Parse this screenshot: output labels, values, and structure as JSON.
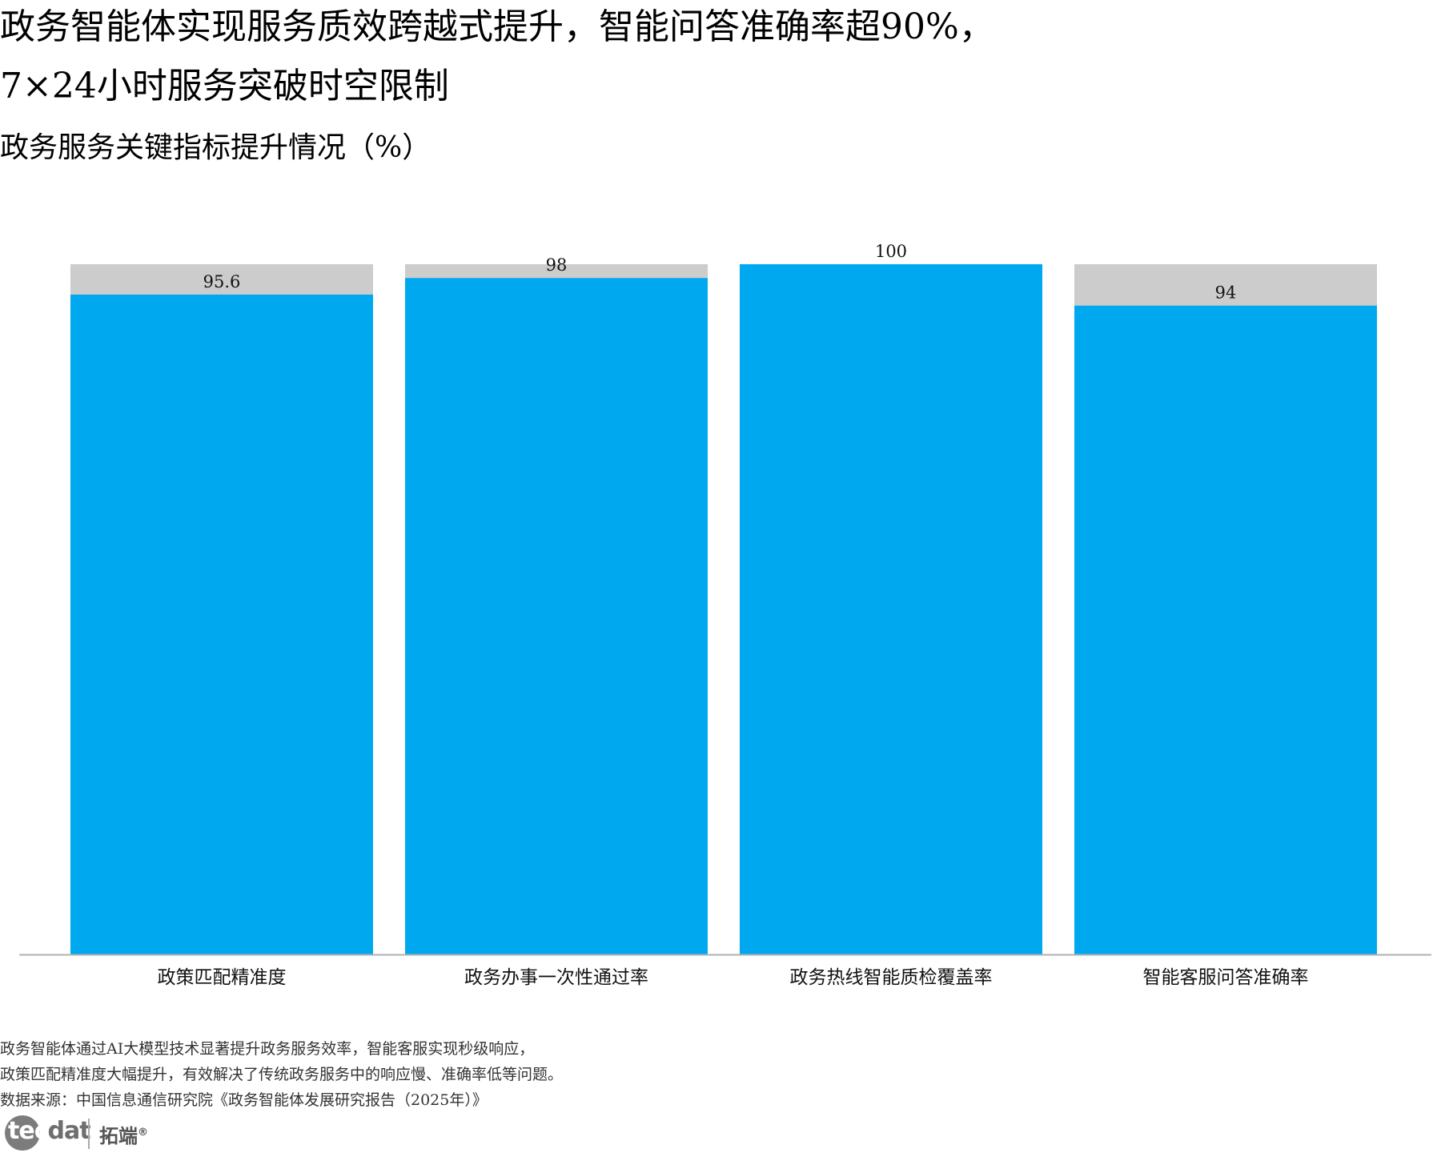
{
  "title_line1": "政务智能体实现服务质效跨越式提升，智能问答准确率超90%，",
  "title_line2": "7×24小时服务突破时空限制",
  "subtitle": "政务服务关键指标提升情况（%）",
  "chart_data": {
    "type": "bar",
    "categories": [
      "政策匹配精准度",
      "政务办事一次性通过率",
      "政务热线智能质检覆盖率",
      "智能客服问答准确率"
    ],
    "values": [
      95.6,
      98,
      100,
      94
    ],
    "value_labels": [
      "95.6",
      "98",
      "100",
      "94"
    ],
    "background_max": 100,
    "ylim": [
      0,
      100
    ],
    "grid": false,
    "colors": {
      "bar": "#00a8f0",
      "background": "#cccccc",
      "axis": "#b0b0b0"
    }
  },
  "notes": [
    "政务智能体通过AI大模型技术显著提升政务服务效率，智能客服实现秒级响应，",
    "政策匹配精准度大幅提升，有效解决了传统政务服务中的响应慢、准确率低等问题。",
    "数据来源：中国信息通信研究院《政务智能体发展研究报告（2025年）》"
  ],
  "logo": {
    "word_prefix": "tec",
    "word_suffix": "dat",
    "cn": "拓端",
    "reg": "®"
  }
}
